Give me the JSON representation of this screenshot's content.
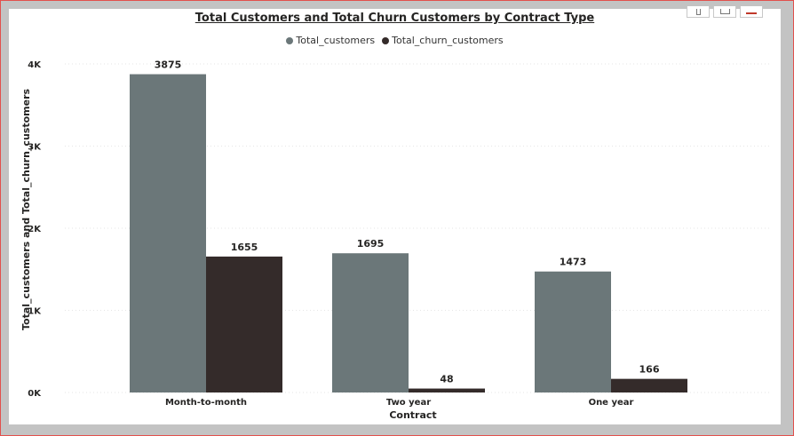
{
  "chart_data": {
    "type": "bar",
    "title": "Total Customers and Total Churn Customers by Contract Type",
    "xlabel": "Contract",
    "ylabel": "Total_customers and Total_churn_customers",
    "categories": [
      "Month-to-month",
      "Two year",
      "One year"
    ],
    "series": [
      {
        "name": "Total_customers",
        "values": [
          3875,
          1695,
          1473
        ],
        "color": "#6b7779"
      },
      {
        "name": "Total_churn_customers",
        "values": [
          1655,
          48,
          166
        ],
        "color": "#342b2a"
      }
    ],
    "ylim": [
      0,
      4000
    ],
    "yticks": [
      {
        "value": 0,
        "label": "0K"
      },
      {
        "value": 1000,
        "label": "1K"
      },
      {
        "value": 2000,
        "label": "2K"
      },
      {
        "value": 3000,
        "label": "3K"
      },
      {
        "value": 4000,
        "label": "4K"
      }
    ],
    "grid": true,
    "legend_position": "top-center"
  }
}
